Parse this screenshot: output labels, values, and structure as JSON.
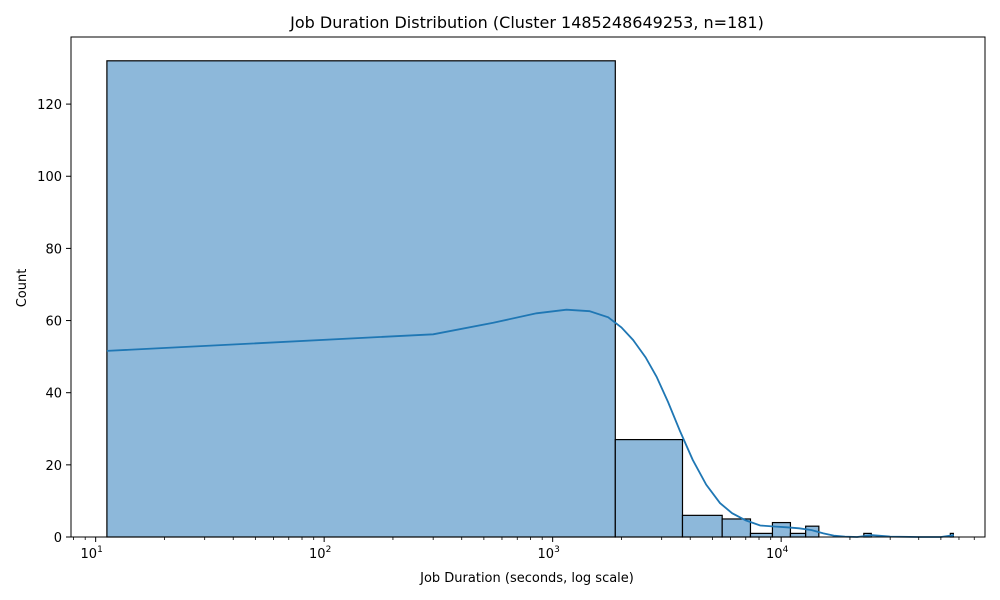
{
  "chart_data": {
    "type": "bar",
    "title": "Job Duration Distribution (Cluster 1485248649253, n=181)",
    "xlabel": "Job Duration (seconds, log scale)",
    "ylabel": "Count",
    "x_scale": "log",
    "xlim": [
      7.8,
      78000
    ],
    "ylim": [
      0,
      138.6
    ],
    "grid": false,
    "x_major_ticks": [
      {
        "value": 10,
        "base": "10",
        "exp": "1"
      },
      {
        "value": 100,
        "base": "10",
        "exp": "2"
      },
      {
        "value": 1000,
        "base": "10",
        "exp": "3"
      },
      {
        "value": 10000,
        "base": "10",
        "exp": "4"
      }
    ],
    "y_ticks": [
      0,
      20,
      40,
      60,
      80,
      100,
      120
    ],
    "colors": {
      "bar_fill": "#8db8da",
      "bar_edge": "#000000",
      "kde_line": "#1f77b4"
    },
    "bins": [
      {
        "x0": 11.2,
        "x1": 1880,
        "count": 132
      },
      {
        "x0": 1880,
        "x1": 3700,
        "count": 27
      },
      {
        "x0": 3700,
        "x1": 5520,
        "count": 6
      },
      {
        "x0": 5520,
        "x1": 7340,
        "count": 5
      },
      {
        "x0": 7340,
        "x1": 9160,
        "count": 1
      },
      {
        "x0": 9160,
        "x1": 10980,
        "count": 4
      },
      {
        "x0": 10980,
        "x1": 12800,
        "count": 1
      },
      {
        "x0": 12800,
        "x1": 14620,
        "count": 3
      },
      {
        "x0": 23000,
        "x1": 24800,
        "count": 1
      },
      {
        "x0": 55000,
        "x1": 56700,
        "count": 1
      }
    ],
    "kde": {
      "name": "",
      "x": [
        11.2,
        300,
        550,
        850,
        1150,
        1450,
        1750,
        2000,
        2250,
        2550,
        2850,
        3200,
        3600,
        4100,
        4700,
        5400,
        6100,
        7000,
        8100,
        9300,
        10600,
        12000,
        13600,
        15300,
        17000,
        19000,
        21500,
        25000,
        30000,
        40000,
        50000,
        57000
      ],
      "y": [
        51.6,
        56.2,
        59.4,
        62.0,
        63.0,
        62.6,
        60.9,
        58.1,
        54.6,
        49.8,
        44.4,
        37.4,
        29.5,
        21.4,
        14.5,
        9.4,
        6.6,
        4.6,
        3.2,
        2.9,
        2.7,
        2.4,
        1.9,
        1.0,
        0.4,
        0.1,
        0.0,
        0.5,
        0.1,
        0.0,
        0.0,
        0.5
      ]
    }
  }
}
